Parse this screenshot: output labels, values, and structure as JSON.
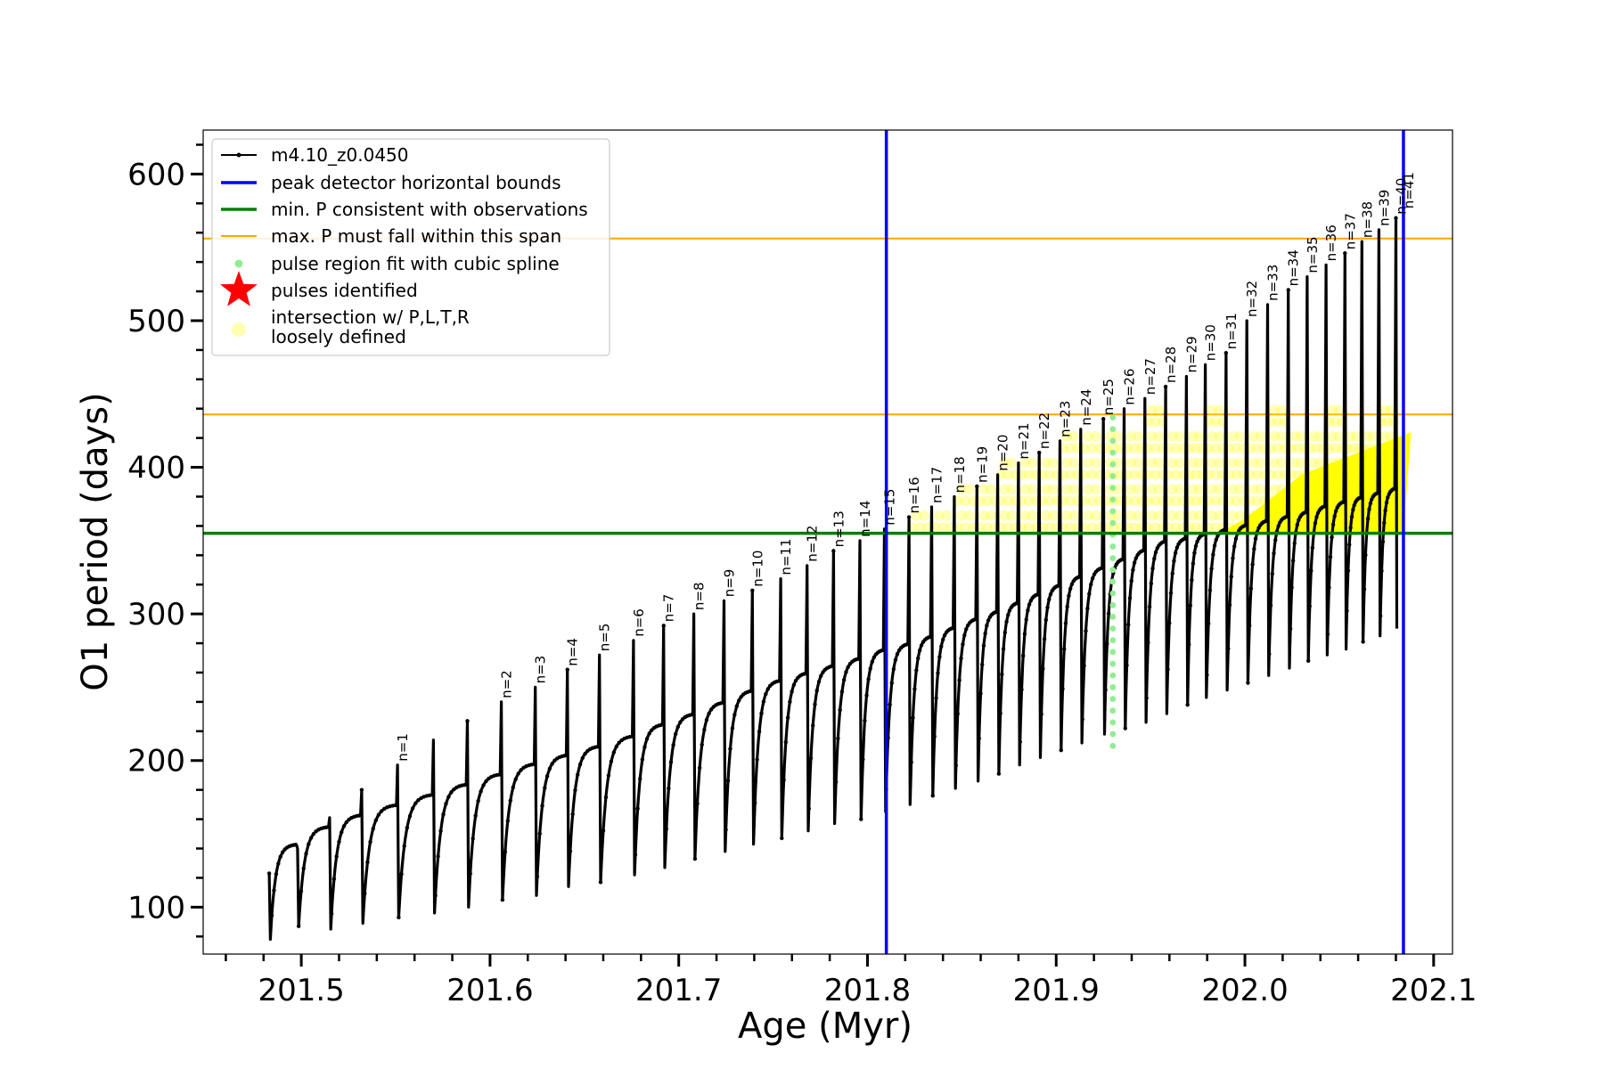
{
  "chart_data": {
    "type": "line",
    "title": "",
    "xlabel": "Age (Myr)",
    "ylabel": "O1 period (days)",
    "xlim": [
      201.448,
      202.11
    ],
    "ylim": [
      68,
      630
    ],
    "x_ticks": [
      201.5,
      201.6,
      201.7,
      201.8,
      201.9,
      202.0,
      202.1
    ],
    "x_tick_labels": [
      "201.5",
      "201.6",
      "201.7",
      "201.8",
      "201.9",
      "202.0",
      "202.1"
    ],
    "y_ticks": [
      100,
      200,
      300,
      400,
      500,
      600
    ],
    "y_tick_labels": [
      "100",
      "200",
      "300",
      "400",
      "500",
      "600"
    ],
    "grid": false,
    "legend_position": "top-left",
    "series": [
      {
        "name": "m4.10_z0.0450",
        "color": "#000000",
        "style": "line-with-dots",
        "cycles": {
          "pulse_ages": [
            201.483,
            201.498,
            201.515,
            201.532,
            201.551,
            201.57,
            201.588,
            201.606,
            201.624,
            201.641,
            201.658,
            201.676,
            201.692,
            201.708,
            201.724,
            201.739,
            201.754,
            201.768,
            201.782,
            201.796,
            201.809,
            201.822,
            201.834,
            201.846,
            201.858,
            201.869,
            201.88,
            201.891,
            201.902,
            201.913,
            201.925,
            201.936,
            201.947,
            201.958,
            201.969,
            201.979,
            201.99,
            202.001,
            202.012,
            202.023,
            202.033,
            202.043,
            202.053,
            202.062,
            202.071,
            202.08
          ],
          "pulse_peak_periods": [
            123,
            140,
            161,
            180,
            197,
            214,
            227,
            240,
            250,
            262,
            272,
            282,
            292,
            300,
            309,
            316,
            324,
            333,
            343,
            350,
            358,
            366,
            373,
            380,
            387,
            395,
            403,
            410,
            418,
            426,
            433,
            440,
            447,
            455,
            462,
            470,
            478,
            500,
            511,
            521,
            530,
            538,
            546,
            554,
            562,
            570
          ],
          "trough_periods": [
            78,
            87,
            85,
            89,
            93,
            96,
            100,
            105,
            108,
            114,
            117,
            122,
            127,
            133,
            138,
            143,
            147,
            152,
            157,
            160,
            165,
            170,
            176,
            181,
            186,
            191,
            197,
            202,
            207,
            212,
            218,
            222,
            226,
            232,
            238,
            243,
            248,
            253,
            258,
            263,
            268,
            272,
            276,
            281,
            285,
            290
          ],
          "interpulse_max_periods": [
            143,
            155,
            163,
            170,
            177,
            184,
            191,
            198,
            204,
            210,
            217,
            225,
            232,
            240,
            248,
            255,
            260,
            265,
            270,
            276,
            280,
            285,
            291,
            297,
            302,
            308,
            314,
            320,
            326,
            332,
            338,
            344,
            350,
            352,
            355,
            358,
            361,
            364,
            367,
            370,
            374,
            377,
            380,
            383,
            386,
            389
          ]
        }
      },
      {
        "name": "peak detector horizontal bounds",
        "color": "#0000ff",
        "type": "vline",
        "x": [
          201.81,
          202.084
        ]
      },
      {
        "name": "min. P consistent with observations",
        "color": "#008000",
        "type": "hline",
        "y": [
          355
        ]
      },
      {
        "name": "max. P must fall within this span",
        "color": "#ffa500",
        "type": "hline",
        "y": [
          436,
          556
        ]
      },
      {
        "name": "pulse region fit with cubic spline",
        "color": "#90ee90",
        "type": "scatter",
        "x": 201.93,
        "y_range": [
          210,
          438
        ]
      },
      {
        "name": "pulses identified",
        "color": "#ff0000",
        "type": "marker-star"
      },
      {
        "name": "intersection w/ P,L,T,R\nloosely defined",
        "color": "#ffff00",
        "type": "scatter"
      }
    ],
    "pulse_labels": {
      "labels": [
        "n=1",
        "n=2",
        "n=3",
        "n=4",
        "n=5",
        "n=6",
        "n=7",
        "n=8",
        "n=9",
        "n=10",
        "n=11",
        "n=12",
        "n=13",
        "n=14",
        "n=15",
        "n=16",
        "n=17",
        "n=18",
        "n=19",
        "n=20",
        "n=21",
        "n=22",
        "n=23",
        "n=24",
        "n=25",
        "n=26",
        "n=27",
        "n=28",
        "n=29",
        "n=30",
        "n=31",
        "n=32",
        "n=33",
        "n=34",
        "n=35",
        "n=36",
        "n=37",
        "n=38",
        "n=39",
        "n=40",
        "n=41"
      ],
      "x": [
        201.551,
        201.606,
        201.624,
        201.641,
        201.658,
        201.676,
        201.692,
        201.708,
        201.724,
        201.739,
        201.754,
        201.768,
        201.782,
        201.796,
        201.809,
        201.822,
        201.834,
        201.846,
        201.858,
        201.869,
        201.88,
        201.891,
        201.902,
        201.913,
        201.925,
        201.936,
        201.947,
        201.958,
        201.969,
        201.979,
        201.99,
        202.001,
        202.012,
        202.023,
        202.033,
        202.043,
        202.053,
        202.062,
        202.071,
        202.08,
        202.084
      ],
      "y": [
        197,
        240,
        250,
        262,
        272,
        282,
        292,
        300,
        309,
        316,
        324,
        333,
        343,
        350,
        358,
        366,
        373,
        380,
        387,
        395,
        403,
        410,
        418,
        426,
        433,
        440,
        447,
        455,
        462,
        470,
        478,
        500,
        511,
        521,
        530,
        538,
        546,
        554,
        562,
        570,
        574
      ]
    }
  }
}
